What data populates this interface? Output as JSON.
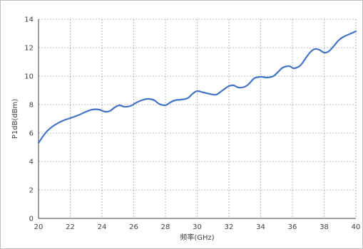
{
  "chart_data": {
    "type": "line",
    "title": "",
    "xlabel": "频率(GHz)",
    "ylabel": "P1dB(dBm)",
    "xlim": [
      20,
      40
    ],
    "ylim": [
      0,
      14
    ],
    "x_ticks": [
      20,
      22,
      24,
      26,
      28,
      30,
      32,
      34,
      36,
      38,
      40
    ],
    "y_ticks": [
      0,
      2,
      4,
      6,
      8,
      10,
      12,
      14
    ],
    "grid": true,
    "legend": "none",
    "series": [
      {
        "color": "#4472c4",
        "x": [
          20,
          20.3,
          20.6,
          21.0,
          21.5,
          22.0,
          22.5,
          23.0,
          23.4,
          23.8,
          24.2,
          24.5,
          24.8,
          25.1,
          25.4,
          25.8,
          26.1,
          26.5,
          26.9,
          27.3,
          27.6,
          28.0,
          28.3,
          28.6,
          29.0,
          29.4,
          29.7,
          30.0,
          30.4,
          30.8,
          31.2,
          31.6,
          32.0,
          32.3,
          32.6,
          33.0,
          33.3,
          33.6,
          34.0,
          34.4,
          34.8,
          35.1,
          35.4,
          35.8,
          36.1,
          36.5,
          36.8,
          37.1,
          37.4,
          37.7,
          38.0,
          38.3,
          38.6,
          38.9,
          39.2,
          39.6,
          40.0
        ],
        "y": [
          5.3,
          5.8,
          6.2,
          6.55,
          6.85,
          7.05,
          7.25,
          7.5,
          7.65,
          7.65,
          7.5,
          7.55,
          7.8,
          7.95,
          7.85,
          7.9,
          8.1,
          8.3,
          8.4,
          8.3,
          8.05,
          7.95,
          8.15,
          8.3,
          8.35,
          8.45,
          8.75,
          8.95,
          8.85,
          8.75,
          8.7,
          9.0,
          9.3,
          9.35,
          9.2,
          9.25,
          9.5,
          9.85,
          9.95,
          9.9,
          10.0,
          10.3,
          10.6,
          10.7,
          10.55,
          10.75,
          11.2,
          11.65,
          11.9,
          11.85,
          11.65,
          11.75,
          12.1,
          12.5,
          12.75,
          12.95,
          13.15
        ]
      }
    ]
  }
}
